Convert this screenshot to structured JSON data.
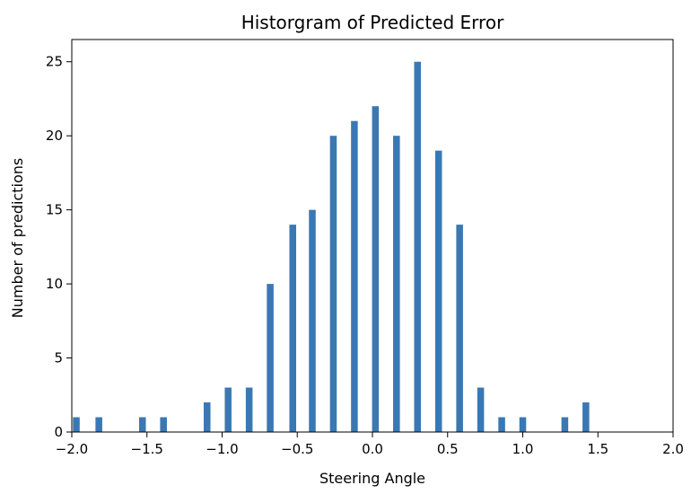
{
  "chart_data": {
    "type": "bar",
    "title": "Historgram of Predicted Error",
    "xlabel": "Steering Angle",
    "ylabel": "Number of predictions",
    "xlim": [
      -2.0,
      2.0
    ],
    "ylim": [
      0,
      26.5
    ],
    "x_ticks": [
      "−2.0",
      "−1.5",
      "−1.0",
      "−0.5",
      "0.0",
      "0.5",
      "1.0",
      "1.5",
      "2.0"
    ],
    "x_tick_values": [
      -2.0,
      -1.5,
      -1.0,
      -0.5,
      0.0,
      0.5,
      1.0,
      1.5,
      2.0
    ],
    "y_ticks": [
      "0",
      "5",
      "10",
      "15",
      "20",
      "25"
    ],
    "y_tick_values": [
      0,
      5,
      10,
      15,
      20,
      25
    ],
    "bar_width": 0.045,
    "grid": false,
    "color": "#3a78b4",
    "bins": [
      {
        "x": -1.97,
        "value": 1
      },
      {
        "x": -1.82,
        "value": 1
      },
      {
        "x": -1.53,
        "value": 1
      },
      {
        "x": -1.39,
        "value": 1
      },
      {
        "x": -1.1,
        "value": 2
      },
      {
        "x": -0.96,
        "value": 3
      },
      {
        "x": -0.82,
        "value": 3
      },
      {
        "x": -0.68,
        "value": 10
      },
      {
        "x": -0.53,
        "value": 14
      },
      {
        "x": -0.4,
        "value": 15
      },
      {
        "x": -0.26,
        "value": 20
      },
      {
        "x": -0.12,
        "value": 21
      },
      {
        "x": 0.02,
        "value": 22
      },
      {
        "x": 0.16,
        "value": 20
      },
      {
        "x": 0.3,
        "value": 25
      },
      {
        "x": 0.44,
        "value": 19
      },
      {
        "x": 0.58,
        "value": 14
      },
      {
        "x": 0.72,
        "value": 3
      },
      {
        "x": 0.86,
        "value": 1
      },
      {
        "x": 1.0,
        "value": 1
      },
      {
        "x": 1.28,
        "value": 1
      },
      {
        "x": 1.42,
        "value": 2
      }
    ]
  }
}
